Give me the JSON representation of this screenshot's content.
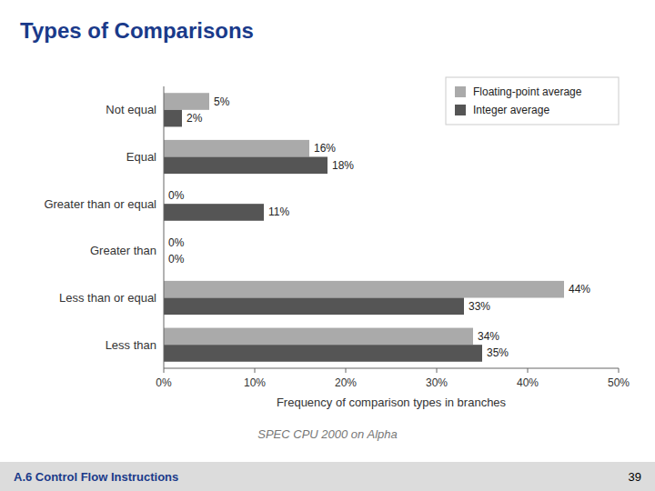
{
  "chart_data": {
    "type": "bar",
    "orientation": "horizontal",
    "title": "Types of Comparisons",
    "subtitle": "SPEC CPU 2000 on Alpha",
    "annotations": [
      "A.6  Control Flow Instructions",
      "39"
    ],
    "categories": [
      "Less than",
      "Less than or equal",
      "Greater than",
      "Greater than or equal",
      "Equal",
      "Not equal"
    ],
    "series": [
      {
        "name": "Floating-point average",
        "color": "#aaaaaa",
        "values": [
          34,
          44,
          0,
          0,
          16,
          5
        ],
        "value_labels": [
          "34%",
          "44%",
          "0%",
          "0%",
          "16%",
          "5%"
        ]
      },
      {
        "name": "Integer average",
        "color": "#555555",
        "values": [
          35,
          33,
          0,
          11,
          18,
          2
        ],
        "value_labels": [
          "35%",
          "33%",
          "0%",
          "11%",
          "18%",
          "2%"
        ]
      }
    ],
    "xlabel": "Frequency of comparison types in branches",
    "xlim": [
      0,
      50
    ],
    "xticks": [
      {
        "value": 0,
        "label": "0%"
      },
      {
        "value": 10,
        "label": "10%"
      },
      {
        "value": 20,
        "label": "20%"
      },
      {
        "value": 30,
        "label": "30%"
      },
      {
        "value": 40,
        "label": "40%"
      },
      {
        "value": 50,
        "label": "50%"
      }
    ],
    "data_labels": true,
    "legend": "upper right",
    "grid": false
  }
}
